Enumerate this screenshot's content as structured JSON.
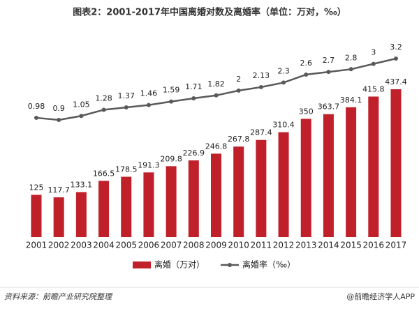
{
  "chart_data": {
    "type": "bar",
    "title": "图表2：2001-2017年中国离婚对数及离婚率（单位：万对，‰）",
    "categories": [
      "2001",
      "2002",
      "2003",
      "2004",
      "2005",
      "2006",
      "2007",
      "2008",
      "2009",
      "2010",
      "2011",
      "2012",
      "2013",
      "2014",
      "2015",
      "2016",
      "2017"
    ],
    "series": [
      {
        "name": "离婚（万对）",
        "color": "#c0202a",
        "values": [
          125,
          117.7,
          133.1,
          166.5,
          178.5,
          191.3,
          209.8,
          226.9,
          246.8,
          267.8,
          287.4,
          310.4,
          350,
          363.7,
          384.1,
          415.8,
          437.4
        ]
      },
      {
        "name": "离婚率（‰）",
        "color": "#595959",
        "type": "line",
        "values": [
          0.98,
          0.9,
          1.05,
          1.28,
          1.37,
          1.46,
          1.59,
          1.71,
          1.82,
          2,
          2.13,
          2.3,
          2.6,
          2.7,
          2.8,
          3,
          3.2
        ]
      }
    ],
    "source": "资料来源：前瞻产业研究院整理",
    "credit": "@前瞻经济学人APP"
  }
}
